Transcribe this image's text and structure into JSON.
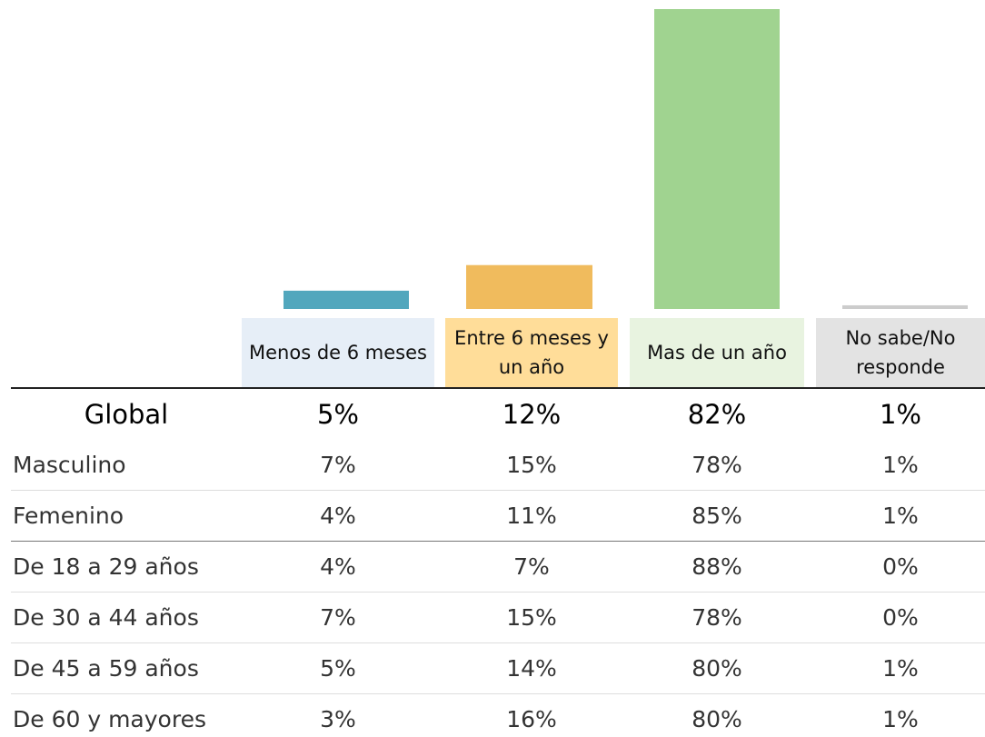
{
  "chart_data": {
    "type": "bar",
    "categories": [
      "Menos de 6 meses",
      "Entre 6 meses y un año",
      "Mas de un año",
      "No sabe/No responde"
    ],
    "values": [
      5,
      12,
      82,
      1
    ],
    "value_labels": [
      "5%",
      "12%",
      "82%",
      "1%"
    ],
    "colors": [
      "#52a7bd",
      "#f0bb5d",
      "#a0d390",
      "#cccccc"
    ],
    "header_colors": [
      "#e6eef7",
      "#ffdd99",
      "#e8f3e0",
      "#e3e3e3"
    ]
  },
  "table": {
    "global_label": "Global",
    "rows": [
      {
        "label": "Masculino",
        "values": [
          "7%",
          "15%",
          "78%",
          "1%"
        ]
      },
      {
        "label": "Femenino",
        "values": [
          "4%",
          "11%",
          "85%",
          "1%"
        ]
      },
      {
        "label": "De 18 a 29 años",
        "values": [
          "4%",
          "7%",
          "88%",
          "0%"
        ]
      },
      {
        "label": "De 30 a 44 años",
        "values": [
          "7%",
          "15%",
          "78%",
          "0%"
        ]
      },
      {
        "label": "De 45 a 59 años",
        "values": [
          "5%",
          "14%",
          "80%",
          "1%"
        ]
      },
      {
        "label": "De 60 y mayores",
        "values": [
          "3%",
          "16%",
          "80%",
          "1%"
        ]
      }
    ]
  }
}
